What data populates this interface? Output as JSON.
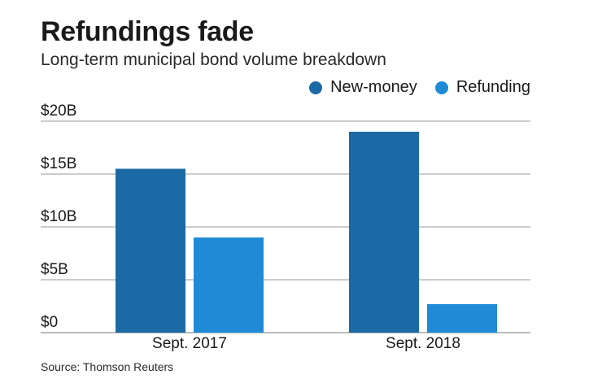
{
  "chart_data": {
    "type": "bar",
    "title": "Refundings fade",
    "subtitle": "Long-term municipal bond volume breakdown",
    "categories": [
      "Sept. 2017",
      "Sept. 2018"
    ],
    "series": [
      {
        "name": "New-money",
        "color": "#1b6aa5",
        "values": [
          15.5,
          19.0
        ]
      },
      {
        "name": "Refunding",
        "color": "#1f8bd6",
        "values": [
          9.0,
          2.7
        ]
      }
    ],
    "ylim": [
      0,
      20
    ],
    "y_ticks": [
      {
        "value": 0,
        "label": "$0"
      },
      {
        "value": 5,
        "label": "$5B"
      },
      {
        "value": 10,
        "label": "$10B"
      },
      {
        "value": 15,
        "label": "$15B"
      },
      {
        "value": 20,
        "label": "$20B"
      }
    ],
    "grid": true,
    "legend_position": "top-right",
    "source": "Source: Thomson Reuters"
  }
}
